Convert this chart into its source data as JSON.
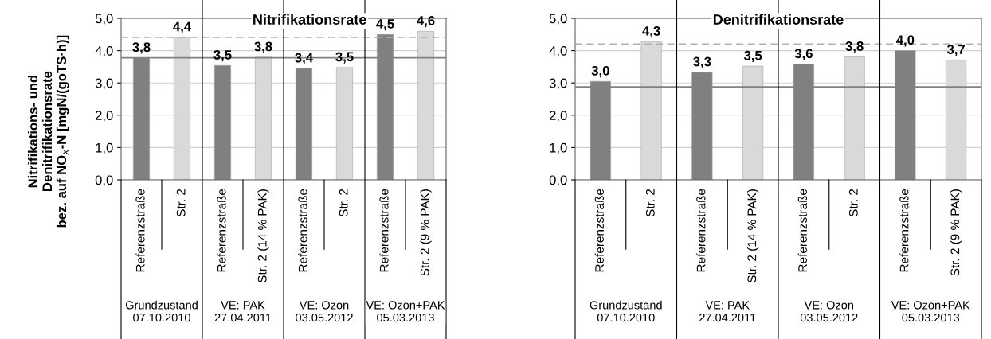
{
  "chart_data": [
    {
      "type": "bar",
      "title": "Nitrifikationsrate",
      "ylabel": "Nitrifikations- und\nDenitrifikationsrate\nbez. auf NO$_{x}$-N [mgN/(goTS·h)]",
      "categories": [
        "Referenzstraße",
        "Str. 2",
        "Referenzstraße",
        "Str. 2 (14 % PAK)",
        "Referenzstraße",
        "Str. 2",
        "Referenzstraße",
        "Str. 2 (9 % PAK)"
      ],
      "values": [
        3.78,
        4.41,
        3.54,
        3.8,
        3.45,
        3.48,
        4.5,
        4.6
      ],
      "value_labels": [
        "3,8",
        "4,4",
        "3,5",
        "3,8",
        "3,4",
        "3,5",
        "4,5",
        "4,6"
      ],
      "colors": [
        "#808080",
        "#d9d9d9",
        "#808080",
        "#d9d9d9",
        "#808080",
        "#d9d9d9",
        "#808080",
        "#d9d9d9"
      ],
      "ylim": [
        0,
        5
      ],
      "yticks": [
        {
          "value": 0,
          "label": "0,0"
        },
        {
          "value": 1,
          "label": "1,0"
        },
        {
          "value": 2,
          "label": "2,0"
        },
        {
          "value": 3,
          "label": "3,0"
        },
        {
          "value": 4,
          "label": "4,0"
        },
        {
          "value": 5,
          "label": "5,0"
        }
      ],
      "ref_lines": [
        {
          "axis": "y",
          "value": 3.78,
          "label": null,
          "color": "#808080",
          "line_style": "solid"
        },
        {
          "axis": "y",
          "value": 4.41,
          "label": null,
          "color": "#b0b0b0",
          "line_style": "dashed"
        }
      ],
      "annotations": [
        "Grundzustand\n07.10.2010",
        "VE: PAK\n27.04.2011",
        "VE: Ozon\n03.05.2012",
        "VE: Ozon+PAK\n05.03.2013"
      ],
      "grid": "y",
      "legend": false
    },
    {
      "type": "bar",
      "title": "Denitrifikationsrate",
      "categories": [
        "Referenzstraße",
        "Str. 2",
        "Referenzstraße",
        "Str. 2 (14 % PAK)",
        "Referenzstraße",
        "Str. 2",
        "Referenzstraße",
        "Str. 2 (9 % PAK)"
      ],
      "values": [
        3.05,
        4.28,
        3.33,
        3.52,
        3.58,
        3.81,
        4.0,
        3.71
      ],
      "value_labels": [
        "3,0",
        "4,3",
        "3,3",
        "3,5",
        "3,6",
        "3,8",
        "4,0",
        "3,7"
      ],
      "colors": [
        "#808080",
        "#d9d9d9",
        "#808080",
        "#d9d9d9",
        "#808080",
        "#d9d9d9",
        "#808080",
        "#d9d9d9"
      ],
      "ylim": [
        0,
        5
      ],
      "yticks": [
        {
          "value": 0,
          "label": "0,0"
        },
        {
          "value": 1,
          "label": "1,0"
        },
        {
          "value": 2,
          "label": "2,0"
        },
        {
          "value": 3,
          "label": "3,0"
        },
        {
          "value": 4,
          "label": "4,0"
        },
        {
          "value": 5,
          "label": "5,0"
        }
      ],
      "ref_lines": [
        {
          "axis": "y",
          "value": 2.88,
          "label": null,
          "color": "#808080",
          "line_style": "solid"
        },
        {
          "axis": "y",
          "value": 4.2,
          "label": null,
          "color": "#b0b0b0",
          "line_style": "dashed"
        }
      ],
      "annotations": [
        "Grundzustand\n07.10.2010",
        "VE: PAK\n27.04.2011",
        "VE: Ozon\n03.05.2012",
        "VE: Ozon+PAK\n05.03.2013"
      ],
      "grid": "y",
      "legend": false
    }
  ]
}
